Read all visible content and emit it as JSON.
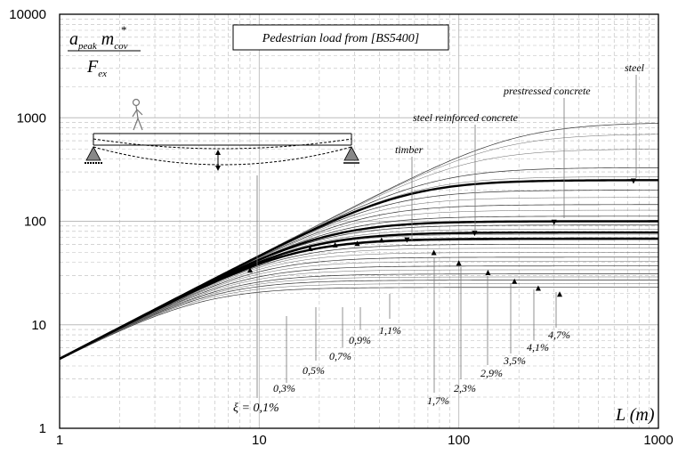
{
  "chart_data": {
    "type": "line",
    "title": "Pedestrian load  from [BS5400]",
    "xlabel": "L (m)",
    "ylabel_parts": {
      "a": "a",
      "peak": "peak",
      "m": "m",
      "star": "*",
      "cov": "cov",
      "F": "F",
      "ex": "ex"
    },
    "x_scale": "log",
    "y_scale": "log",
    "xlim": [
      1,
      1000
    ],
    "ylim": [
      1,
      10000
    ],
    "x_ticks": [
      "1",
      "10",
      "100",
      "1000"
    ],
    "y_ticks": [
      "1",
      "10",
      "100",
      "1000",
      "10000"
    ],
    "grid": true,
    "start_value_at_L1": 4.7,
    "damping_curves": [
      {
        "label": "ξ = 0,1%",
        "plateau": 900,
        "arrow_L": 9,
        "arrow_value": 36
      },
      {
        "label": "0,3%",
        "plateau": 330
      },
      {
        "label": "0,5%",
        "plateau": 200,
        "arrow_L": 18,
        "arrow_value": 58
      },
      {
        "label": "0,7%",
        "plateau": 145,
        "arrow_L": 24,
        "arrow_value": 63
      },
      {
        "label": "0,9%",
        "plateau": 112,
        "arrow_L": 31,
        "arrow_value": 65
      },
      {
        "label": "1,1%",
        "plateau": 92,
        "arrow_L": 41,
        "arrow_value": 70
      },
      {
        "label": "1,7%",
        "plateau": 60,
        "arrow_L": 75,
        "arrow_value": 53
      },
      {
        "label": "2,3%",
        "plateau": 45,
        "arrow_L": 100,
        "arrow_value": 42
      },
      {
        "label": "2,9%",
        "plateau": 37,
        "arrow_L": 140,
        "arrow_value": 34
      },
      {
        "label": "3,5%",
        "plateau": 31,
        "arrow_L": 190,
        "arrow_value": 28
      },
      {
        "label": "4,1%",
        "plateau": 27,
        "arrow_L": 250,
        "arrow_value": 24
      },
      {
        "label": "4,7%",
        "plateau": 23,
        "arrow_L": 320,
        "arrow_value": 21
      }
    ],
    "material_curves": [
      {
        "label": "steel",
        "plateau": 250,
        "arrow_L": 750,
        "arrow_value": 230
      },
      {
        "label": "prestressed concrete",
        "plateau": 100,
        "arrow_L": 300,
        "arrow_value": 92
      },
      {
        "label": "steel reinforced concrete",
        "plateau": 78,
        "arrow_L": 120,
        "arrow_value": 72
      },
      {
        "label": "timber",
        "plateau": 68,
        "arrow_L": 55,
        "arrow_value": 62
      }
    ]
  }
}
